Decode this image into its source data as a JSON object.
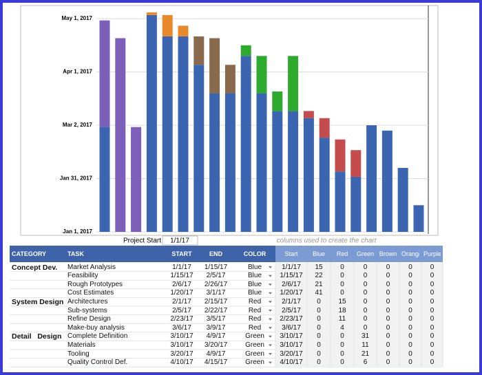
{
  "chart_data": {
    "type": "stacked-bar",
    "ylim": [
      0,
      127
    ],
    "yticks": [
      {
        "value": 0,
        "label": "Jan 1, 2017"
      },
      {
        "value": 30,
        "label": "Jan 31, 2017"
      },
      {
        "value": 60,
        "label": "Mar 2, 2017"
      },
      {
        "value": 90,
        "label": "Apr 1, 2017"
      },
      {
        "value": 120,
        "label": "May 1, 2017"
      }
    ],
    "grid": true,
    "series": [
      {
        "color": "#3b65b1",
        "values": [
          59,
          0,
          0,
          122,
          110,
          110,
          94,
          78,
          78,
          99,
          78,
          68,
          68,
          64,
          53,
          34,
          31,
          60,
          57,
          36,
          15
        ]
      },
      {
        "color": "#c44c4c",
        "values": [
          0,
          0,
          0,
          0,
          0,
          0,
          0,
          0,
          0,
          0,
          0,
          0,
          0,
          4,
          11,
          18,
          15,
          0,
          0,
          0,
          0
        ]
      },
      {
        "color": "#2eaa2e",
        "values": [
          0,
          0,
          0,
          0,
          0,
          0,
          0,
          0,
          0,
          6,
          21,
          11,
          31,
          0,
          0,
          0,
          0,
          0,
          0,
          0,
          0
        ]
      },
      {
        "color": "#8a6a4c",
        "values": [
          0,
          0,
          0,
          0,
          0,
          0,
          16,
          31,
          16,
          0,
          0,
          0,
          0,
          0,
          0,
          0,
          0,
          0,
          0,
          0,
          0
        ]
      },
      {
        "color": "#e8892a",
        "values": [
          0,
          0,
          0,
          1.5,
          12,
          6,
          0,
          0,
          0,
          0,
          0,
          0,
          0,
          0,
          0,
          0,
          0,
          0,
          0,
          0,
          0
        ]
      },
      {
        "color": "#7b5fb8",
        "values": [
          60,
          109,
          59,
          0,
          0,
          0,
          0,
          0,
          0,
          0,
          0,
          0,
          0,
          0,
          0,
          0,
          0,
          0,
          0,
          0,
          0
        ]
      }
    ]
  },
  "project_start": {
    "label": "Project Start",
    "value": "1/1/17"
  },
  "note": "columns used to create the chart",
  "table": {
    "header": [
      "CATEGORY",
      "TASK",
      "START",
      "END",
      "COLOR",
      "Start",
      "Blue",
      "Red",
      "Green",
      "Brown",
      "Orange",
      "Purple"
    ],
    "groups": [
      {
        "category": "Concept Dev.",
        "rows": [
          [
            "Market Analysis",
            "1/1/17",
            "1/15/17",
            "Blue",
            "1/1/17",
            15,
            0,
            0,
            0,
            0,
            0
          ],
          [
            "Feasibility",
            "1/15/17",
            "2/5/17",
            "Blue",
            "1/15/17",
            22,
            0,
            0,
            0,
            0,
            0
          ],
          [
            "Rough Prototypes",
            "2/6/17",
            "2/26/17",
            "Blue",
            "2/6/17",
            21,
            0,
            0,
            0,
            0,
            0
          ],
          [
            "Cost Estimates",
            "1/20/17",
            "3/1/17",
            "Blue",
            "1/20/17",
            41,
            0,
            0,
            0,
            0,
            0
          ]
        ]
      },
      {
        "category": "System Design",
        "rows": [
          [
            "Architectures",
            "2/1/17",
            "2/15/17",
            "Red",
            "2/1/17",
            0,
            15,
            0,
            0,
            0,
            0
          ],
          [
            "Sub-systems",
            "2/5/17",
            "2/22/17",
            "Red",
            "2/5/17",
            0,
            18,
            0,
            0,
            0,
            0
          ],
          [
            "Refine Design",
            "2/23/17",
            "3/5/17",
            "Red",
            "2/23/17",
            0,
            11,
            0,
            0,
            0,
            0
          ],
          [
            "Make-buy analysis",
            "3/6/17",
            "3/9/17",
            "Red",
            "3/6/17",
            0,
            4,
            0,
            0,
            0,
            0
          ]
        ]
      },
      {
        "category": "Detail   Design",
        "rows": [
          [
            "Complete Definition",
            "3/10/17",
            "4/9/17",
            "Green",
            "3/10/17",
            0,
            0,
            31,
            0,
            0,
            0
          ],
          [
            "Materials",
            "3/10/17",
            "3/20/17",
            "Green",
            "3/10/17",
            0,
            0,
            11,
            0,
            0,
            0
          ],
          [
            "Tooling",
            "3/20/17",
            "4/9/17",
            "Green",
            "3/20/17",
            0,
            0,
            21,
            0,
            0,
            0
          ],
          [
            "Quality Control Def.",
            "4/10/17",
            "4/15/17",
            "Green",
            "4/10/17",
            0,
            0,
            6,
            0,
            0,
            0
          ]
        ]
      }
    ]
  }
}
